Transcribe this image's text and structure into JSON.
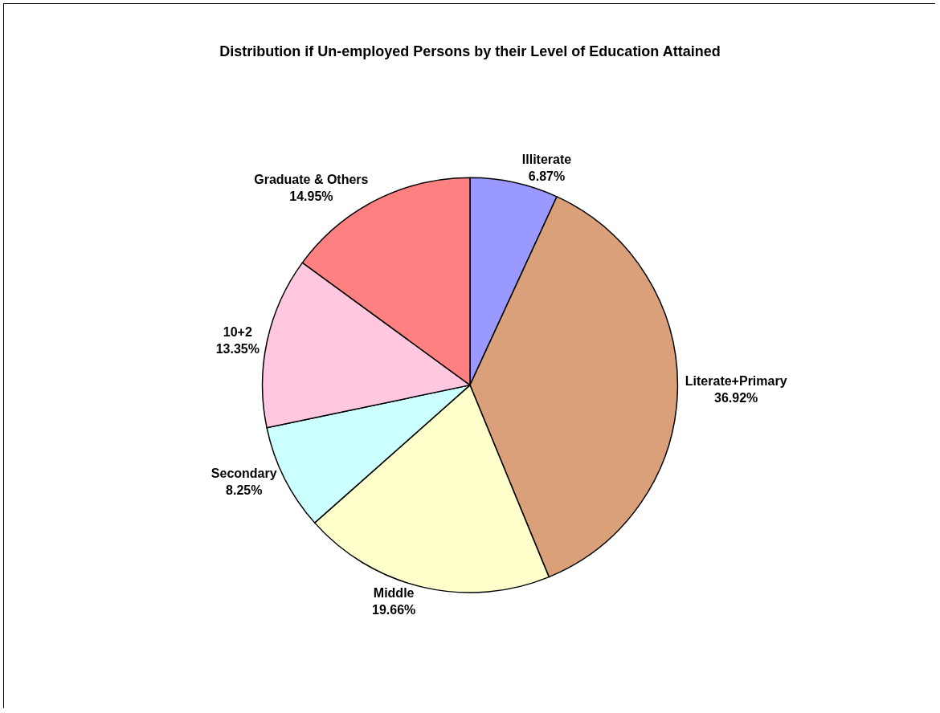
{
  "chart_data": {
    "type": "pie",
    "title": "Distribution if Un-employed Persons by their Level of Education Attained",
    "categories": [
      "Illiterate",
      "Literate+Primary",
      "Middle",
      "Secondary",
      "10+2",
      "Graduate & Others"
    ],
    "values": [
      6.87,
      36.92,
      19.66,
      8.25,
      13.35,
      14.95
    ],
    "value_labels": [
      "6.87%",
      "36.92%",
      "19.66%",
      "8.25%",
      "13.35%",
      "14.95%"
    ],
    "colors": [
      "#9999ff",
      "#d9a07a",
      "#ffffcc",
      "#ccffff",
      "#ffc8e0",
      "#ff8080"
    ],
    "legend": false
  }
}
